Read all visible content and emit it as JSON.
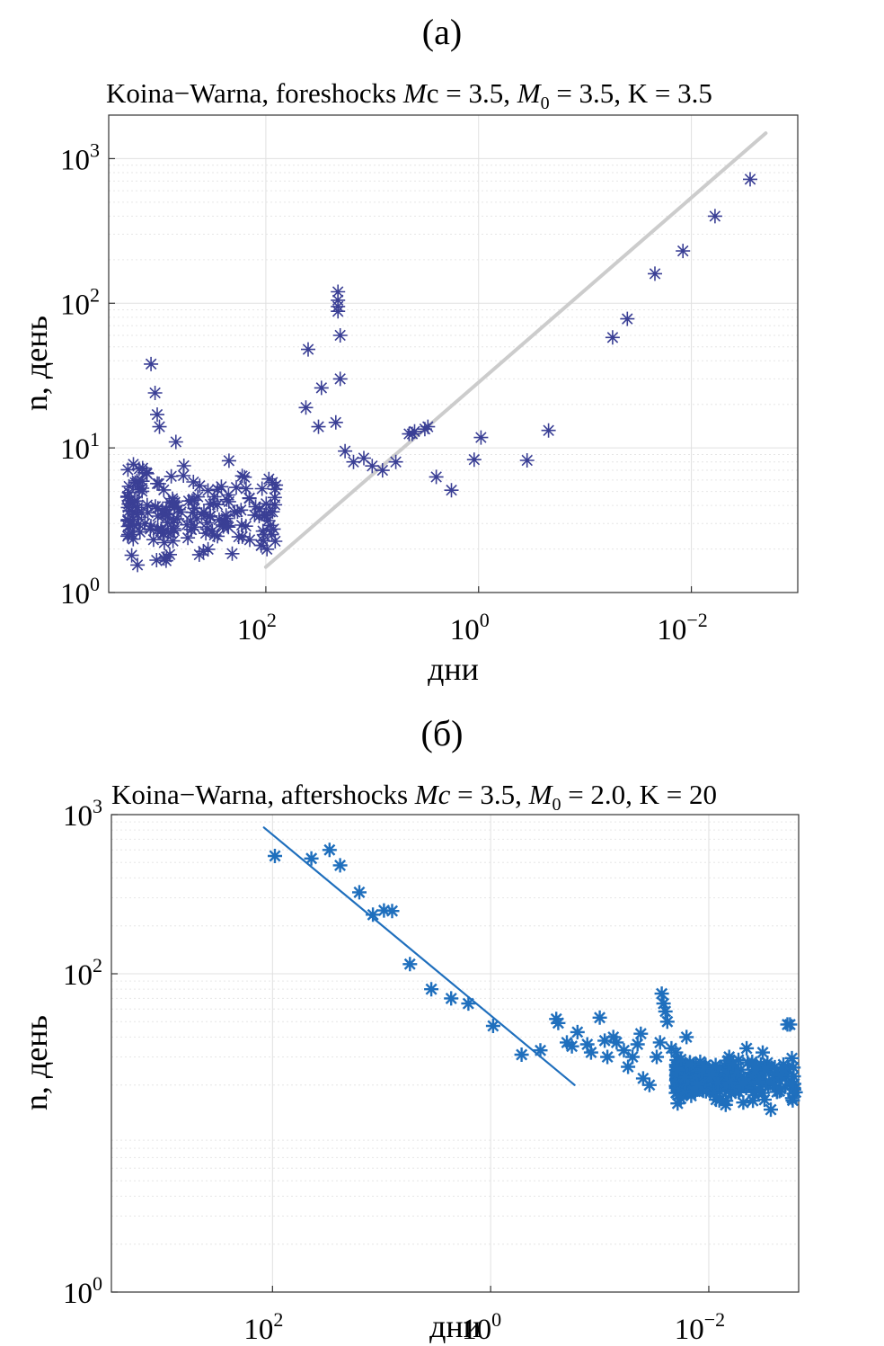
{
  "panels": {
    "a": {
      "label": "(а)",
      "title": {
        "prefix": "Koina−Warna, foreshocks ",
        "mc_sym": "M",
        "mc_rest": "c",
        "mc_val": " = 3.5,  ",
        "m0_sym": "M",
        "m0_sub": "0",
        "rest": " = 3.5,  K = 3.5"
      }
    },
    "b": {
      "label": "(б)",
      "title": {
        "prefix": "Koina−Warna, aftershocks ",
        "mc_sym": "Mc",
        "mc_val": " = 3.5,  ",
        "m0_sym": "M",
        "m0_sub": "0",
        "rest": " = 2.0,  K = 20"
      }
    }
  },
  "chart_data": [
    {
      "id": "a",
      "type": "scatter",
      "title": "Koina−Warna, foreshocks Mc = 3.5,  M0 = 3.5,  K = 3.5",
      "xlabel": "дни",
      "ylabel": "n, день",
      "xscale": "log",
      "yscale": "log",
      "xreversed": true,
      "xlim": [
        3000,
        0.001
      ],
      "ylim": [
        1,
        2000
      ],
      "xticks": [
        {
          "base": "10",
          "exp": "2",
          "value": 100
        },
        {
          "base": "10",
          "exp": "0",
          "value": 1
        },
        {
          "base": "10",
          "exp": "−2",
          "value": 0.01
        }
      ],
      "yticks": [
        {
          "base": "10",
          "exp": "0",
          "value": 1
        },
        {
          "base": "10",
          "exp": "1",
          "value": 10
        },
        {
          "base": "10",
          "exp": "2",
          "value": 100
        },
        {
          "base": "10",
          "exp": "3",
          "value": 1000
        }
      ],
      "grid": true,
      "colors": {
        "marker": "#3a3f95",
        "line": "#cccccc"
      },
      "marker": "asterisk",
      "fit_line": {
        "x": [
          100,
          0.002
        ],
        "y": [
          1.5,
          1500
        ]
      },
      "cluster": {
        "x_range": [
          2000,
          80
        ],
        "y_range": [
          1.5,
          9
        ],
        "count": 180,
        "seed": 7
      },
      "points": [
        [
          1200,
          38
        ],
        [
          1100,
          24
        ],
        [
          1050,
          17
        ],
        [
          1000,
          14
        ],
        [
          700,
          11
        ],
        [
          40,
          48
        ],
        [
          42,
          19
        ],
        [
          30,
          26
        ],
        [
          32,
          14
        ],
        [
          22,
          15
        ],
        [
          20,
          30
        ],
        [
          21,
          120
        ],
        [
          21,
          105
        ],
        [
          21,
          95
        ],
        [
          21,
          88
        ],
        [
          20,
          60
        ],
        [
          18,
          9.5
        ],
        [
          15,
          8
        ],
        [
          12,
          8.5
        ],
        [
          10,
          7.5
        ],
        [
          8,
          7
        ],
        [
          6,
          8
        ],
        [
          4.5,
          12.5
        ],
        [
          4.2,
          12.5
        ],
        [
          4,
          13
        ],
        [
          3.2,
          13.5
        ],
        [
          3,
          14
        ],
        [
          2.5,
          6.3
        ],
        [
          1.8,
          5.1
        ],
        [
          1.1,
          8.3
        ],
        [
          0.35,
          8.2
        ],
        [
          0.22,
          13.2
        ],
        [
          0.95,
          11.8
        ],
        [
          0.055,
          58
        ],
        [
          0.04,
          78
        ],
        [
          0.022,
          160
        ],
        [
          0.012,
          230
        ],
        [
          0.006,
          400
        ],
        [
          0.0028,
          720
        ]
      ]
    },
    {
      "id": "b",
      "type": "scatter",
      "title": "Koina−Warna, aftershocks Mc = 3.5,  M0 = 2.0,  K = 20",
      "xlabel": "дни",
      "ylabel": "n, день",
      "xscale": "log",
      "yscale": "log",
      "xreversed": true,
      "xlim": [
        3000,
        0.0015
      ],
      "ylim": [
        1,
        1000
      ],
      "xticks": [
        {
          "base": "10",
          "exp": "2",
          "value": 100
        },
        {
          "base": "10",
          "exp": "0",
          "value": 1
        },
        {
          "base": "10",
          "exp": "−2",
          "value": 0.01
        }
      ],
      "yticks": [
        {
          "base": "10",
          "exp": "0",
          "value": 1
        },
        {
          "base": "10",
          "exp": "2",
          "value": 100
        },
        {
          "base": "10",
          "exp": "3",
          "value": 1000
        }
      ],
      "grid": true,
      "colors": {
        "marker": "#1f6fbd",
        "line": "#1f6fbd"
      },
      "marker": "asterisk",
      "fit_line": {
        "x": [
          120,
          0.17
        ],
        "y": [
          830,
          20
        ]
      },
      "cluster": {
        "x_range": [
          0.02,
          0.0016
        ],
        "y_range": [
          15,
          30
        ],
        "count": 230,
        "seed": 11
      },
      "points": [
        [
          95,
          550
        ],
        [
          44,
          530
        ],
        [
          30,
          600
        ],
        [
          24,
          480
        ],
        [
          16,
          325
        ],
        [
          12,
          235
        ],
        [
          9.5,
          250
        ],
        [
          8,
          248
        ],
        [
          5.5,
          115
        ],
        [
          3.5,
          80
        ],
        [
          2.3,
          70
        ],
        [
          1.6,
          65
        ],
        [
          0.95,
          47
        ],
        [
          0.52,
          31
        ],
        [
          0.35,
          33
        ],
        [
          0.25,
          52
        ],
        [
          0.24,
          49
        ],
        [
          0.2,
          37
        ],
        [
          0.18,
          35
        ],
        [
          0.16,
          43
        ],
        [
          0.13,
          36
        ],
        [
          0.12,
          32
        ],
        [
          0.1,
          53
        ],
        [
          0.09,
          38
        ],
        [
          0.085,
          30
        ],
        [
          0.075,
          40
        ],
        [
          0.07,
          37
        ],
        [
          0.06,
          33
        ],
        [
          0.055,
          26
        ],
        [
          0.05,
          30
        ],
        [
          0.045,
          36
        ],
        [
          0.042,
          42
        ],
        [
          0.04,
          22
        ],
        [
          0.035,
          20
        ],
        [
          0.03,
          30
        ],
        [
          0.028,
          37
        ],
        [
          0.027,
          75
        ],
        [
          0.026,
          65
        ],
        [
          0.025,
          58
        ],
        [
          0.024,
          50
        ],
        [
          0.022,
          34
        ],
        [
          0.02,
          32
        ],
        [
          0.018,
          29
        ],
        [
          0.016,
          40
        ],
        [
          0.015,
          27
        ],
        [
          0.012,
          28
        ],
        [
          0.011,
          26
        ],
        [
          0.0095,
          23
        ],
        [
          0.009,
          18
        ],
        [
          0.008,
          16
        ],
        [
          0.007,
          15
        ],
        [
          0.0065,
          30
        ],
        [
          0.006,
          27
        ],
        [
          0.0045,
          34
        ],
        [
          0.004,
          28
        ],
        [
          0.0035,
          21
        ],
        [
          0.0032,
          32
        ],
        [
          0.003,
          25
        ],
        [
          0.0027,
          14
        ],
        [
          0.0025,
          20
        ],
        [
          0.0022,
          23
        ],
        [
          0.0019,
          48
        ],
        [
          0.0018,
          48
        ],
        [
          0.0017,
          16
        ],
        [
          0.0017,
          20
        ],
        [
          0.0016,
          18
        ]
      ]
    }
  ]
}
